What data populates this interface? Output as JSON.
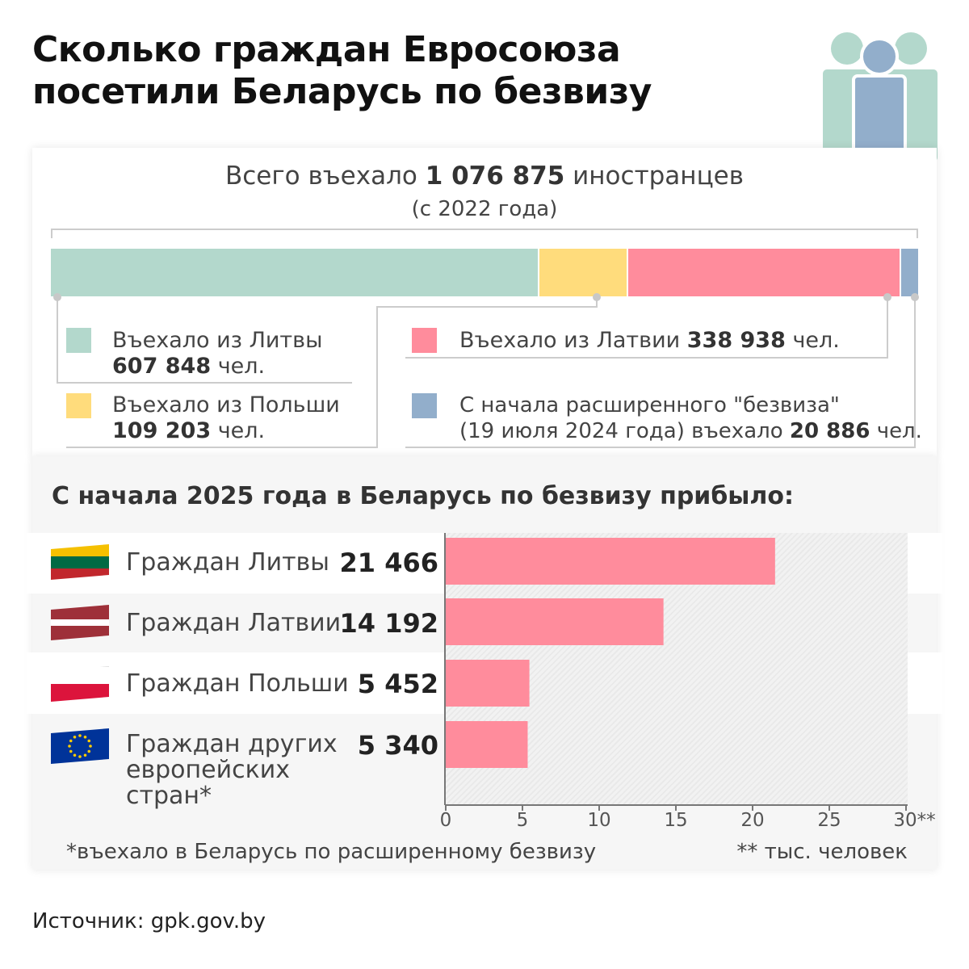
{
  "title_line1": "Сколько граждан Евросоюза",
  "title_line2": "посетили Беларусь по безвизу",
  "total": {
    "prefix": "Всего въехало",
    "value": "1 076 875",
    "suffix": "иностранцев",
    "since": "(с 2022 года)"
  },
  "legend": {
    "lithuania": {
      "label": "Въехало из Литвы",
      "value": "607 848",
      "unit": "чел."
    },
    "poland": {
      "label": "Въехало из Польши",
      "value": "109 203",
      "unit": "чел."
    },
    "latvia": {
      "label": "Въехало из Латвии",
      "value": "338 938",
      "unit": "чел."
    },
    "extended": {
      "label": "С начала расширенного \"безвиза\"",
      "line2_prefix": "(19 июля 2024 года) въехало",
      "value": "20 886",
      "unit": "чел."
    }
  },
  "colors": {
    "lithuania": "#b3d8cc",
    "poland": "#ffdc7c",
    "latvia": "#ff8c9c",
    "extended": "#92aecb",
    "bar": "#ff8c9c"
  },
  "stacked_data": {
    "type": "stacked-bar",
    "segments": [
      {
        "key": "lithuania",
        "value": 607848
      },
      {
        "key": "poland",
        "value": 109203
      },
      {
        "key": "latvia",
        "value": 338938
      },
      {
        "key": "extended",
        "value": 20886
      }
    ]
  },
  "section_title": "С начала 2025 года в Беларусь по безвизу прибыло:",
  "rows": [
    {
      "country": "Граждан Литвы",
      "value": "21 466",
      "flag": "lithuania-flag"
    },
    {
      "country": "Граждан Латвии",
      "value": "14 192",
      "flag": "latvia-flag"
    },
    {
      "country": "Граждан Польши",
      "value": "5 452",
      "flag": "poland-flag"
    },
    {
      "country_l1": "Граждан других",
      "country_l2": "европейских",
      "country_l3": "стран*",
      "value": "5 340",
      "flag": "eu-flag"
    }
  ],
  "chart_data": {
    "type": "bar",
    "orientation": "horizontal",
    "categories": [
      "Граждан Литвы",
      "Граждан Латвии",
      "Граждан Польши",
      "Граждан других европейских стран*"
    ],
    "values": [
      21.466,
      14.192,
      5.452,
      5.34
    ],
    "xlim": [
      0,
      30
    ],
    "xticks": [
      "0",
      "5",
      "10",
      "15",
      "20",
      "25",
      "30**"
    ]
  },
  "footnote": "*въехало в Беларусь по расширенному безвизу",
  "unit_note": "** тыс. человек",
  "source": "Источник: gpk.gov.by"
}
